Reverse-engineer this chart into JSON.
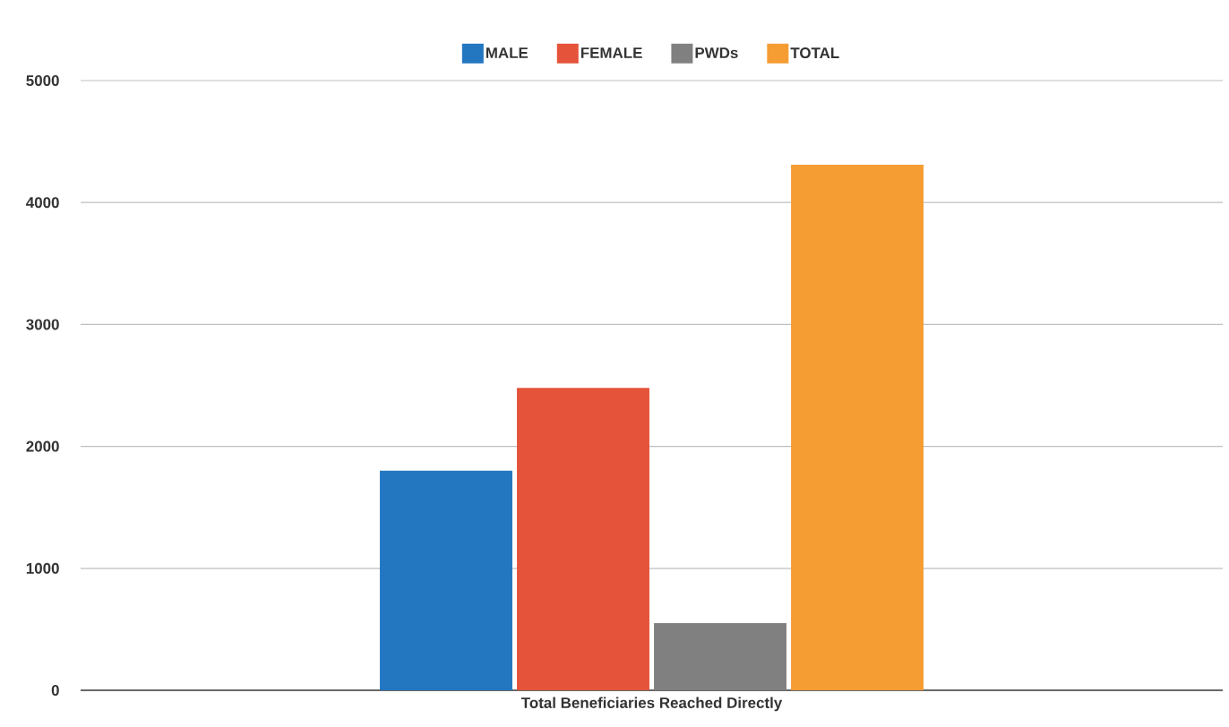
{
  "chart_data": {
    "type": "bar",
    "categories": [
      "Total Beneficiaries Reached Directly"
    ],
    "series": [
      {
        "name": "MALE",
        "color": "#2376c0",
        "values": [
          1800
        ]
      },
      {
        "name": "FEMALE",
        "color": "#e4533a",
        "values": [
          2480
        ]
      },
      {
        "name": "PWDs",
        "color": "#808080",
        "values": [
          550
        ]
      },
      {
        "name": "TOTAL",
        "color": "#f59d33",
        "values": [
          4310
        ]
      }
    ],
    "ylim": [
      0,
      5000
    ],
    "yticks": [
      0,
      1000,
      2000,
      3000,
      4000,
      5000
    ],
    "grid": "y",
    "legend": "top"
  }
}
